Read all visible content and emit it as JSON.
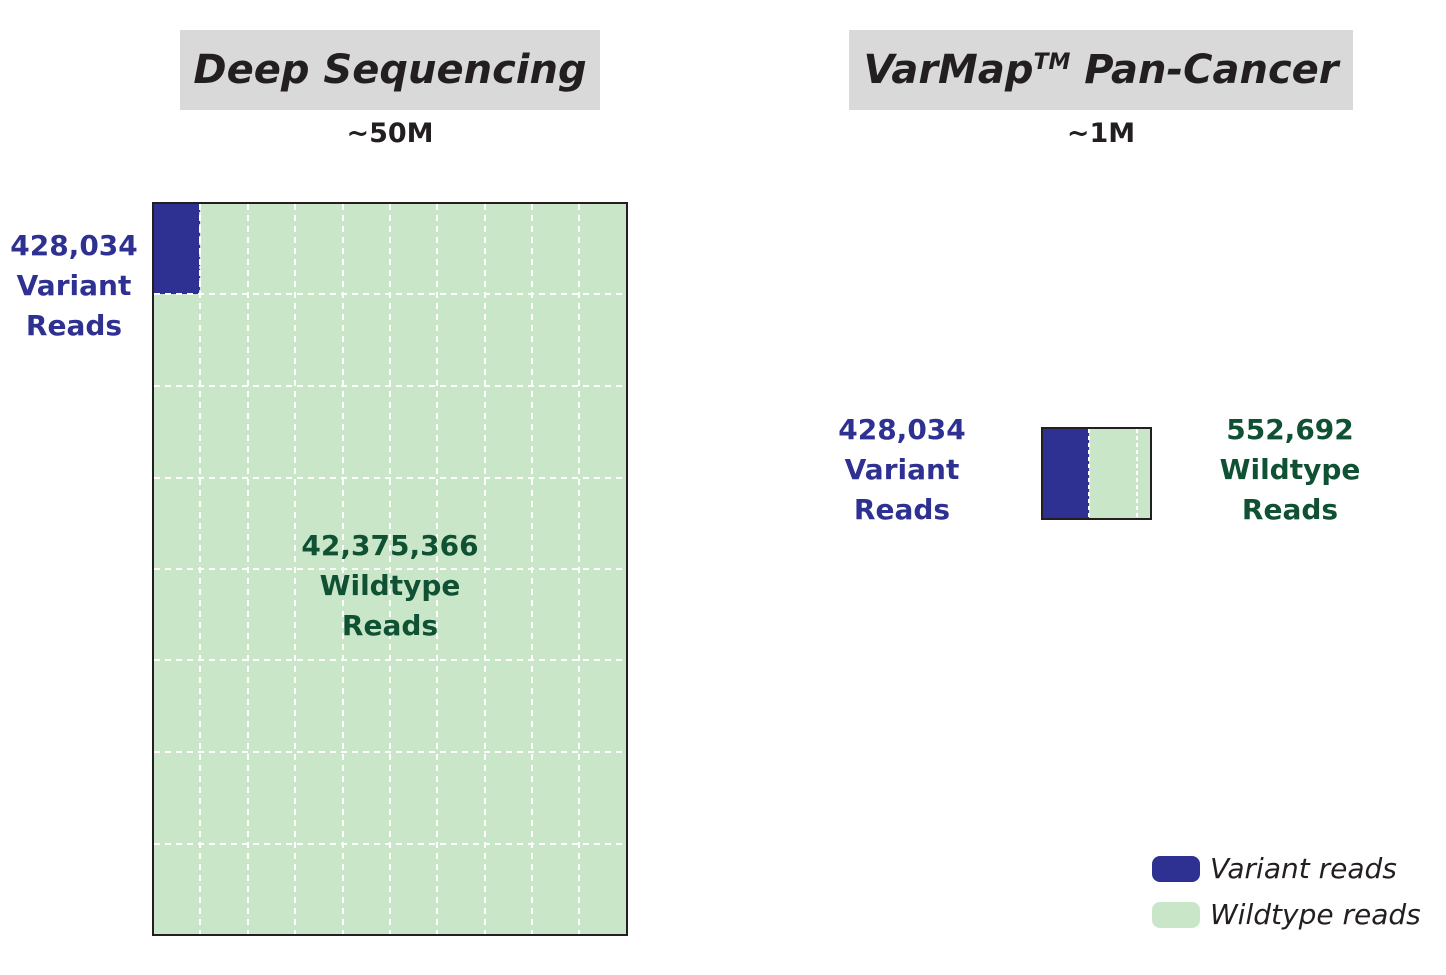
{
  "colors": {
    "variant": "#2e3192",
    "wildtype": "#c9e6c8",
    "variant_text": "#2e3192",
    "wildtype_text": "#0f5132",
    "title_bg": "#d9d9d9"
  },
  "left_panel": {
    "title": "Deep Sequencing",
    "total": "~50M",
    "variant_callout": [
      "428,034",
      "Variant",
      "Reads"
    ],
    "wildtype_callout": [
      "42,375,366",
      "Wildtype",
      "Reads"
    ]
  },
  "right_panel": {
    "title_main": "VarMap",
    "title_sup": "TM",
    "title_rest": " Pan-Cancer",
    "total": "~1M",
    "variant_callout": [
      "428,034",
      "Variant",
      "Reads"
    ],
    "wildtype_callout": [
      "552,692",
      "Wildtype",
      "Reads"
    ]
  },
  "legend": {
    "variant_label": "Variant reads",
    "wildtype_label": "Wildtype reads"
  }
}
